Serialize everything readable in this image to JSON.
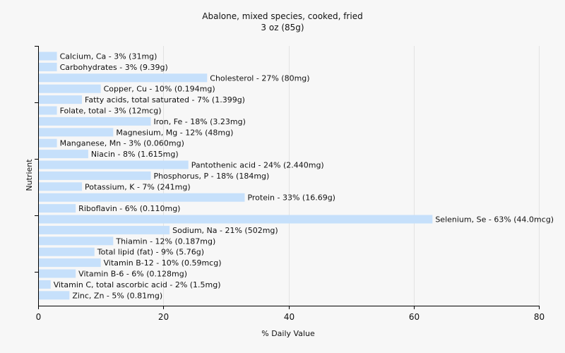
{
  "chart_data": {
    "type": "bar",
    "orientation": "horizontal",
    "title": "Abalone, mixed species, cooked, fried",
    "subtitle": "3 oz (85g)",
    "xlabel": "% Daily Value",
    "ylabel": "Nutrient",
    "xlim": [
      0,
      80
    ],
    "xticks": [
      0,
      20,
      40,
      60,
      80
    ],
    "grid": true,
    "bar_color": "#c6e0fb",
    "categories": [
      "Calcium, Ca",
      "Carbohydrates",
      "Cholesterol",
      "Copper, Cu",
      "Fatty acids, total saturated",
      "Folate, total",
      "Iron, Fe",
      "Magnesium, Mg",
      "Manganese, Mn",
      "Niacin",
      "Pantothenic acid",
      "Phosphorus, P",
      "Potassium, K",
      "Protein",
      "Riboflavin",
      "Selenium, Se",
      "Sodium, Na",
      "Thiamin",
      "Total lipid (fat)",
      "Vitamin B-12",
      "Vitamin B-6",
      "Vitamin C, total ascorbic acid",
      "Zinc, Zn"
    ],
    "values": [
      3,
      3,
      27,
      10,
      7,
      3,
      18,
      12,
      3,
      8,
      24,
      18,
      7,
      33,
      6,
      63,
      21,
      12,
      9,
      10,
      6,
      2,
      5
    ],
    "labels": [
      "Calcium, Ca - 3% (31mg)",
      "Carbohydrates - 3% (9.39g)",
      "Cholesterol - 27% (80mg)",
      "Copper, Cu - 10% (0.194mg)",
      "Fatty acids, total saturated - 7% (1.399g)",
      "Folate, total - 3% (12mcg)",
      "Iron, Fe - 18% (3.23mg)",
      "Magnesium, Mg - 12% (48mg)",
      "Manganese, Mn - 3% (0.060mg)",
      "Niacin - 8% (1.615mg)",
      "Pantothenic acid - 24% (2.440mg)",
      "Phosphorus, P - 18% (184mg)",
      "Potassium, K - 7% (241mg)",
      "Protein - 33% (16.69g)",
      "Riboflavin - 6% (0.110mg)",
      "Selenium, Se - 63% (44.0mcg)",
      "Sodium, Na - 21% (502mg)",
      "Thiamin - 12% (0.187mg)",
      "Total lipid (fat) - 9% (5.76g)",
      "Vitamin B-12 - 10% (0.59mcg)",
      "Vitamin B-6 - 6% (0.128mg)",
      "Vitamin C, total ascorbic acid - 2% (1.5mg)",
      "Zinc, Zn - 5% (0.81mg)"
    ]
  }
}
